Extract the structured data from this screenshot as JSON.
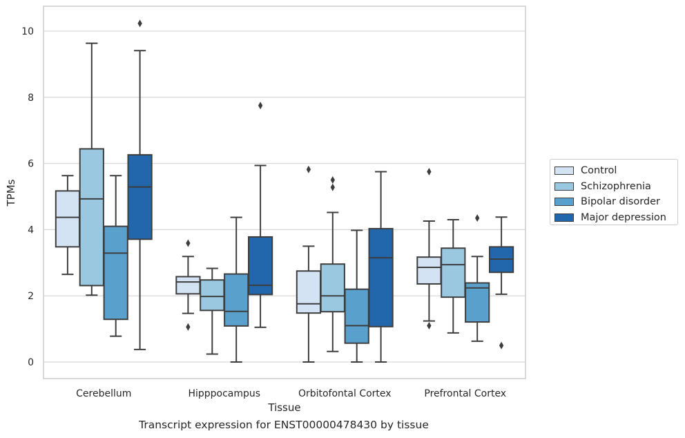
{
  "caption": "Transcript expression for ENST00000478430 by tissue",
  "chart_data": {
    "type": "box",
    "xlabel": "Tissue",
    "ylabel": "TPMs",
    "ylim": [
      -0.5,
      10.75
    ],
    "yticks": [
      0,
      2,
      4,
      6,
      8,
      10
    ],
    "grid": "horizontal",
    "legend_position": "right",
    "categories": [
      "Cerebellum",
      "Hipppocampus",
      "Orbitofontal Cortex",
      "Prefrontal Cortex"
    ],
    "series": [
      {
        "name": "Control",
        "color": "#d3e3f3",
        "boxes": [
          {
            "whisker_low": 2.65,
            "q1": 3.48,
            "median": 4.37,
            "q3": 5.17,
            "whisker_high": 5.63,
            "outliers": []
          },
          {
            "whisker_low": 1.47,
            "q1": 2.06,
            "median": 2.42,
            "q3": 2.58,
            "whisker_high": 3.19,
            "outliers": [
              1.06,
              3.59
            ]
          },
          {
            "whisker_low": 0.0,
            "q1": 1.48,
            "median": 1.76,
            "q3": 2.75,
            "whisker_high": 3.5,
            "outliers": [
              5.82
            ]
          },
          {
            "whisker_low": 1.24,
            "q1": 2.36,
            "median": 2.86,
            "q3": 3.17,
            "whisker_high": 4.26,
            "outliers": [
              1.1,
              5.75
            ]
          }
        ]
      },
      {
        "name": "Schizophrenia",
        "color": "#9ac8e0",
        "boxes": [
          {
            "whisker_low": 2.02,
            "q1": 2.31,
            "median": 4.93,
            "q3": 6.44,
            "whisker_high": 9.63,
            "outliers": []
          },
          {
            "whisker_low": 0.24,
            "q1": 1.56,
            "median": 1.98,
            "q3": 2.48,
            "whisker_high": 2.83,
            "outliers": []
          },
          {
            "whisker_low": 0.32,
            "q1": 1.52,
            "median": 2.0,
            "q3": 2.96,
            "whisker_high": 4.52,
            "outliers": [
              5.28,
              5.5
            ]
          },
          {
            "whisker_low": 0.88,
            "q1": 1.96,
            "median": 2.94,
            "q3": 3.44,
            "whisker_high": 4.3,
            "outliers": []
          }
        ]
      },
      {
        "name": "Bipolar disorder",
        "color": "#5aa0cd",
        "boxes": [
          {
            "whisker_low": 0.78,
            "q1": 1.29,
            "median": 3.29,
            "q3": 4.1,
            "whisker_high": 5.63,
            "outliers": []
          },
          {
            "whisker_low": 0.0,
            "q1": 1.09,
            "median": 1.53,
            "q3": 2.66,
            "whisker_high": 4.37,
            "outliers": []
          },
          {
            "whisker_low": 0.0,
            "q1": 0.57,
            "median": 1.1,
            "q3": 2.2,
            "whisker_high": 3.98,
            "outliers": []
          },
          {
            "whisker_low": 0.63,
            "q1": 1.21,
            "median": 2.24,
            "q3": 2.39,
            "whisker_high": 3.19,
            "outliers": [
              4.35
            ]
          }
        ]
      },
      {
        "name": "Major depression",
        "color": "#2266ac",
        "boxes": [
          {
            "whisker_low": 0.38,
            "q1": 3.71,
            "median": 5.29,
            "q3": 6.26,
            "whisker_high": 9.41,
            "outliers": [
              10.23
            ]
          },
          {
            "whisker_low": 1.05,
            "q1": 2.04,
            "median": 2.32,
            "q3": 3.78,
            "whisker_high": 5.94,
            "outliers": [
              7.75
            ]
          },
          {
            "whisker_low": 0.0,
            "q1": 1.07,
            "median": 3.15,
            "q3": 4.03,
            "whisker_high": 5.75,
            "outliers": []
          },
          {
            "whisker_low": 2.05,
            "q1": 2.71,
            "median": 3.11,
            "q3": 3.48,
            "whisker_high": 4.38,
            "outliers": [
              0.5
            ]
          }
        ]
      }
    ]
  }
}
